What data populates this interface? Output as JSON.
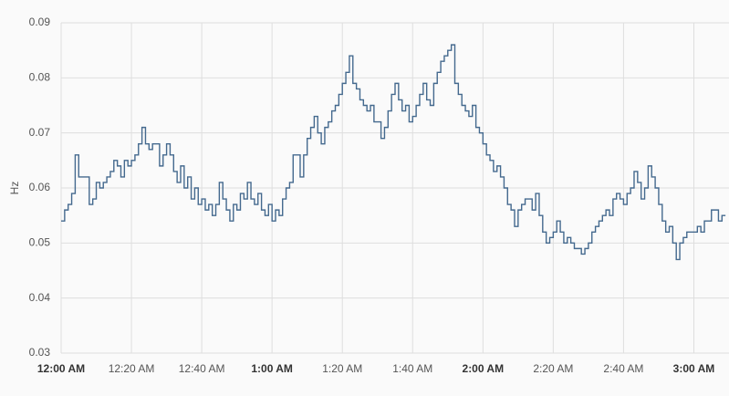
{
  "chart_data": {
    "type": "line",
    "step": true,
    "y_label": "Hz",
    "x": [
      0,
      1,
      2,
      3,
      4,
      5,
      6,
      7,
      8,
      9,
      10,
      11,
      12,
      13,
      14,
      15,
      16,
      17,
      18,
      19,
      20,
      21,
      22,
      23,
      24,
      25,
      26,
      27,
      28,
      29,
      30,
      31,
      32,
      33,
      34,
      35,
      36,
      37,
      38,
      39,
      40,
      41,
      42,
      43,
      44,
      45,
      46,
      47,
      48,
      49,
      50,
      51,
      52,
      53,
      54,
      55,
      56,
      57,
      58,
      59,
      60,
      61,
      62,
      63,
      64,
      65,
      66,
      67,
      68,
      69,
      70,
      71,
      72,
      73,
      74,
      75,
      76,
      77,
      78,
      79,
      80,
      81,
      82,
      83,
      84,
      85,
      86,
      87,
      88,
      89,
      90,
      91,
      92,
      93,
      94,
      95,
      96,
      97,
      98,
      99,
      100,
      101,
      102,
      103,
      104,
      105,
      106,
      107,
      108,
      109,
      110,
      111,
      112,
      113,
      114,
      115,
      116,
      117,
      118,
      119,
      120,
      121,
      122,
      123,
      124,
      125,
      126,
      127,
      128,
      129,
      130,
      131,
      132,
      133,
      134,
      135,
      136,
      137,
      138,
      139,
      140,
      141,
      142,
      143,
      144,
      145,
      146,
      147,
      148,
      149,
      150,
      151,
      152,
      153,
      154,
      155,
      156,
      157,
      158,
      159,
      160,
      161,
      162,
      163,
      164,
      165,
      166,
      167,
      168,
      169,
      170,
      171,
      172,
      173,
      174,
      175,
      176,
      177,
      178,
      179,
      180,
      181,
      182,
      183,
      184,
      185,
      186,
      187,
      188,
      189
    ],
    "series": [
      {
        "color": "#44698e",
        "values": [
          0.054,
          0.056,
          0.057,
          0.059,
          0.066,
          0.062,
          0.062,
          0.062,
          0.057,
          0.058,
          0.061,
          0.06,
          0.061,
          0.062,
          0.063,
          0.065,
          0.064,
          0.062,
          0.065,
          0.064,
          0.065,
          0.066,
          0.068,
          0.071,
          0.068,
          0.067,
          0.068,
          0.068,
          0.064,
          0.066,
          0.068,
          0.066,
          0.063,
          0.061,
          0.064,
          0.06,
          0.062,
          0.058,
          0.06,
          0.057,
          0.058,
          0.056,
          0.057,
          0.055,
          0.057,
          0.061,
          0.058,
          0.056,
          0.054,
          0.057,
          0.056,
          0.059,
          0.058,
          0.061,
          0.058,
          0.057,
          0.059,
          0.056,
          0.055,
          0.057,
          0.054,
          0.056,
          0.055,
          0.058,
          0.06,
          0.061,
          0.066,
          0.066,
          0.062,
          0.066,
          0.069,
          0.071,
          0.073,
          0.07,
          0.068,
          0.071,
          0.072,
          0.074,
          0.075,
          0.077,
          0.079,
          0.081,
          0.084,
          0.079,
          0.078,
          0.076,
          0.075,
          0.074,
          0.075,
          0.072,
          0.072,
          0.069,
          0.071,
          0.074,
          0.077,
          0.079,
          0.076,
          0.074,
          0.075,
          0.072,
          0.073,
          0.075,
          0.077,
          0.079,
          0.076,
          0.075,
          0.079,
          0.081,
          0.083,
          0.084,
          0.085,
          0.086,
          0.079,
          0.077,
          0.075,
          0.074,
          0.073,
          0.075,
          0.071,
          0.07,
          0.068,
          0.066,
          0.065,
          0.063,
          0.064,
          0.062,
          0.06,
          0.057,
          0.056,
          0.053,
          0.056,
          0.057,
          0.058,
          0.058,
          0.056,
          0.059,
          0.055,
          0.052,
          0.05,
          0.051,
          0.052,
          0.054,
          0.052,
          0.05,
          0.051,
          0.05,
          0.049,
          0.049,
          0.048,
          0.049,
          0.05,
          0.052,
          0.053,
          0.054,
          0.055,
          0.056,
          0.055,
          0.058,
          0.059,
          0.058,
          0.057,
          0.059,
          0.06,
          0.063,
          0.061,
          0.058,
          0.06,
          0.064,
          0.062,
          0.06,
          0.057,
          0.054,
          0.052,
          0.053,
          0.05,
          0.047,
          0.05,
          0.051,
          0.052,
          0.052,
          0.052,
          0.053,
          0.052,
          0.054,
          0.054,
          0.056,
          0.056,
          0.054,
          0.055,
          0.055
        ]
      }
    ],
    "xlim": [
      0,
      190
    ],
    "xticks": [
      {
        "value": 0,
        "label": "12:00 AM"
      },
      {
        "value": 20,
        "label": "12:20 AM"
      },
      {
        "value": 40,
        "label": "12:40 AM"
      },
      {
        "value": 60,
        "label": "1:00 AM"
      },
      {
        "value": 80,
        "label": "1:20 AM"
      },
      {
        "value": 100,
        "label": "1:40 AM"
      },
      {
        "value": 120,
        "label": "2:00 AM"
      },
      {
        "value": 140,
        "label": "2:20 AM"
      },
      {
        "value": 160,
        "label": "2:40 AM"
      },
      {
        "value": 180,
        "label": "3:00 AM"
      }
    ],
    "ylim": [
      0.03,
      0.09
    ],
    "yticks": [
      0.03,
      0.04,
      0.05,
      0.06,
      0.07,
      0.08,
      0.09
    ],
    "grid": true
  }
}
